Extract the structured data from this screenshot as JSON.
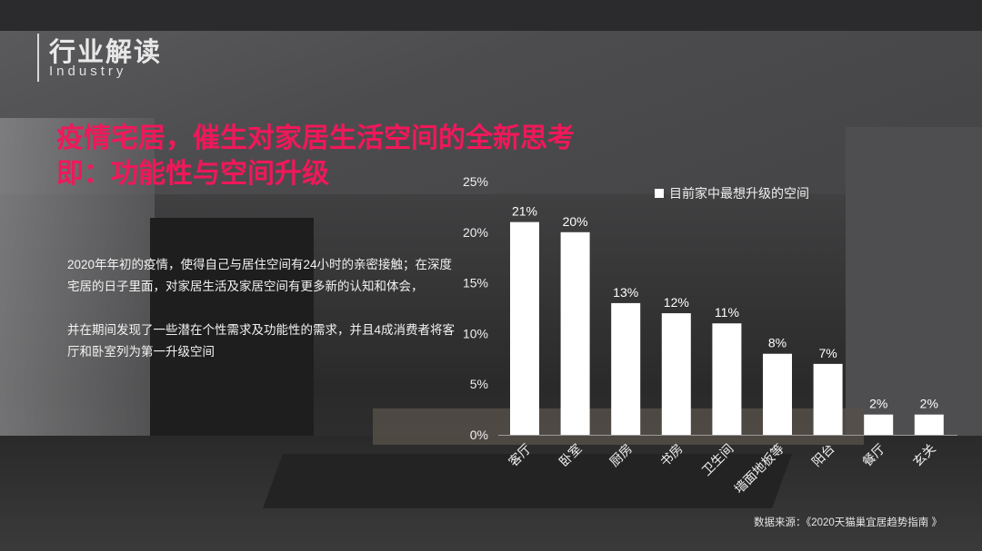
{
  "header": {
    "title": "行业解读",
    "subtitle": "Industry"
  },
  "main_title": {
    "line1": "疫情宅居，催生对家居生活空间的全新思考",
    "line2": "即：功能性与空间升级"
  },
  "body": {
    "para1": "2020年年初的疫情，使得自己与居住空间有24小时的亲密接触；在深度宅居的日子里面，对家居生活及家居空间有更多新的认知和体会，",
    "para2": "并在期间发现了一些潜在个性需求及功能性的需求，并且4成消费者将客厅和卧室列为第一升级空间"
  },
  "source": "数据来源：《2020天猫巢宜居趋势指南 》",
  "colors": {
    "title_accent": "#f0185a",
    "bar": "#ffffff"
  },
  "chart_data": {
    "type": "bar",
    "categories": [
      "客厅",
      "卧室",
      "厨房",
      "书房",
      "卫生间",
      "墙面地板等",
      "阳台",
      "餐厅",
      "玄关"
    ],
    "series": [
      {
        "name": "目前家中最想升级的空间",
        "values": [
          21,
          20,
          13,
          12,
          11,
          8,
          7,
          2,
          2
        ]
      }
    ],
    "data_labels": [
      "21%",
      "20%",
      "13%",
      "12%",
      "11%",
      "8%",
      "7%",
      "2%",
      "2%"
    ],
    "yticks": [
      "0%",
      "5%",
      "10%",
      "15%",
      "20%",
      "25%"
    ],
    "ylim": [
      0,
      25
    ],
    "grid": false,
    "legend": "top-right"
  }
}
